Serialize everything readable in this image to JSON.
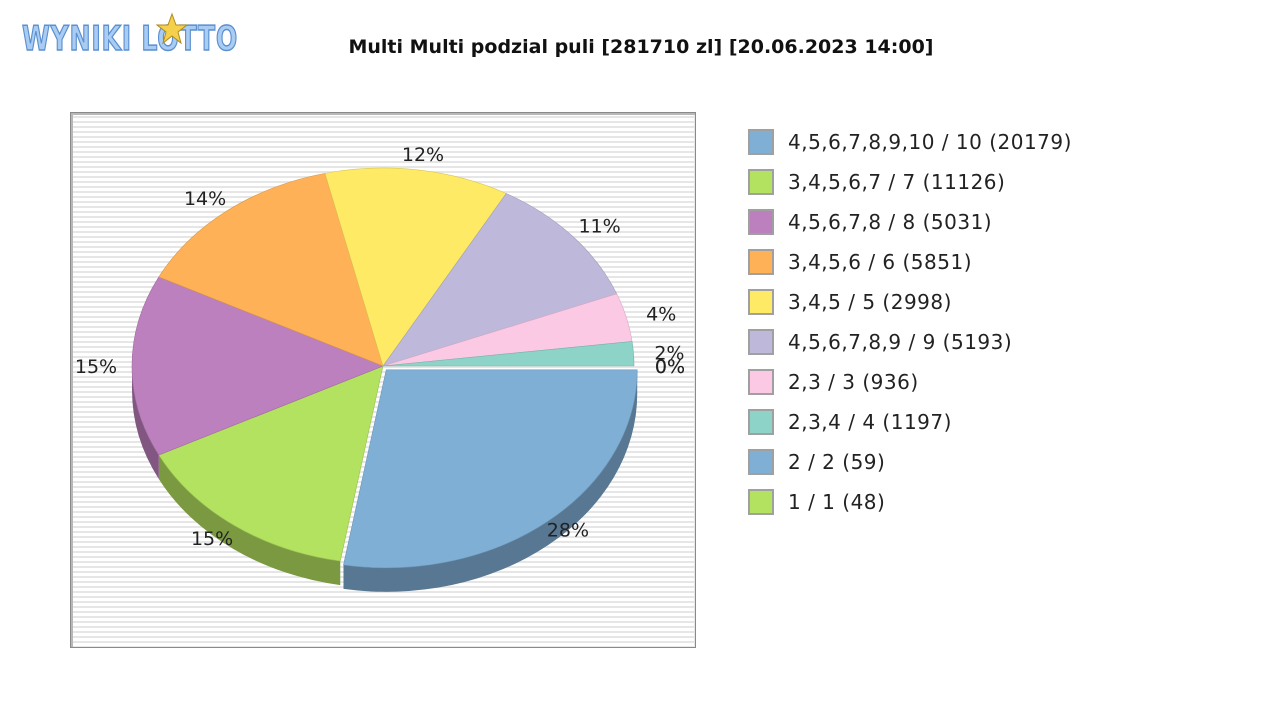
{
  "header": {
    "logo_text": "WYNIKI LOTTO",
    "title": "Multi Multi podzial puli [281710 zl] [20.06.2023 14:00]"
  },
  "chart_data": {
    "type": "pie",
    "title": "Multi Multi podzial puli [281710 zl] [20.06.2023 14:00]",
    "legend_position": "right",
    "slices": [
      {
        "label": "4,5,6,7,8,9,10 / 10 (20179)",
        "percent_label": "28%",
        "percent": 28,
        "color": "#80afd6"
      },
      {
        "label": "3,4,5,6,7 / 7 (11126)",
        "percent_label": "15%",
        "percent": 15,
        "color": "#b3e160"
      },
      {
        "label": "4,5,6,7,8 / 8 (5031)",
        "percent_label": "15%",
        "percent": 15,
        "color": "#bd80be"
      },
      {
        "label": "3,4,5,6 / 6 (5851)",
        "percent_label": "14%",
        "percent": 14,
        "color": "#feb156"
      },
      {
        "label": "3,4,5 / 5 (2998)",
        "percent_label": "12%",
        "percent": 12,
        "color": "#feea64"
      },
      {
        "label": "4,5,6,7,8,9 / 9 (5193)",
        "percent_label": "11%",
        "percent": 11,
        "color": "#beb9da"
      },
      {
        "label": "2,3 / 3 (936)",
        "percent_label": "4%",
        "percent": 4,
        "color": "#fcc9e5"
      },
      {
        "label": "2,3,4 / 4 (1197)",
        "percent_label": "2%",
        "percent": 2,
        "color": "#8dd3c7"
      },
      {
        "label": "2 / 2 (59)",
        "percent_label": "0%",
        "percent": 0,
        "color": "#80afd6"
      },
      {
        "label": "1 / 1 (48)",
        "percent_label": "0%",
        "percent": 0,
        "color": "#b3e160"
      }
    ]
  }
}
